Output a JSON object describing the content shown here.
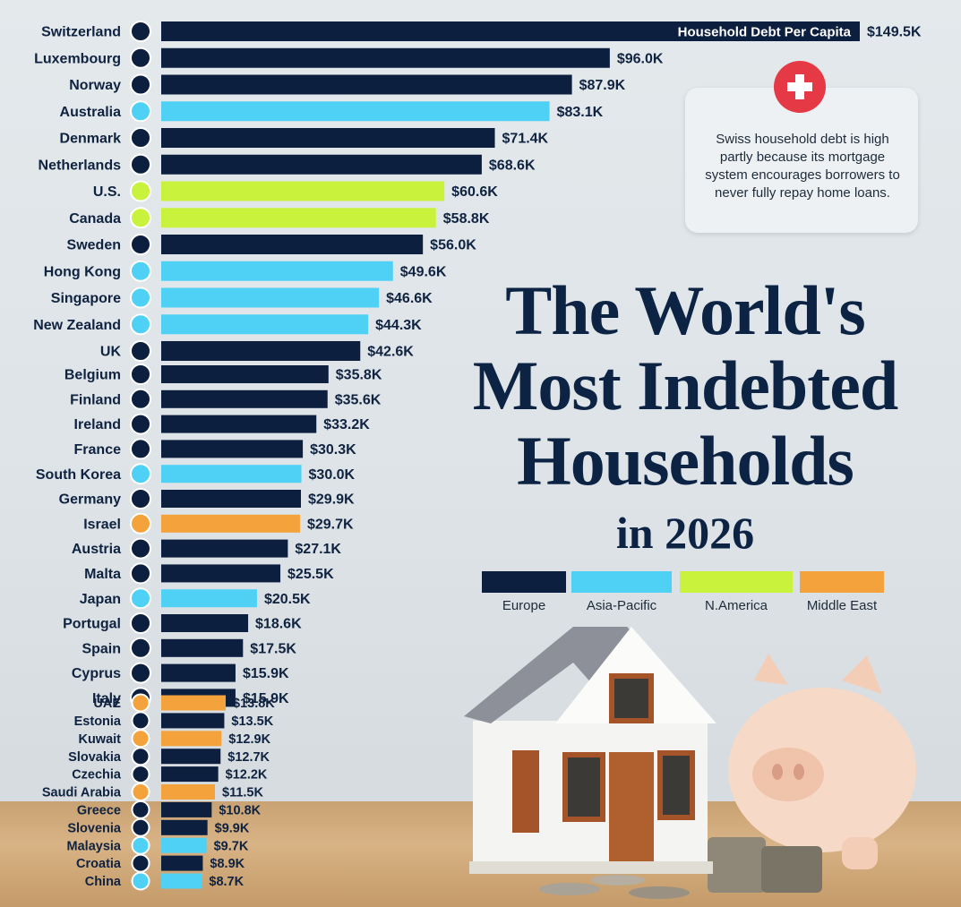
{
  "colors": {
    "Europe": "#0c1f3f",
    "Asia-Pacific": "#4fd1f5",
    "N.America": "#c9f23d",
    "Middle East": "#f4a23c"
  },
  "title": "The World's Most Indebted Households",
  "subtitle": "in 2026",
  "callout": {
    "icon": "swiss-cross-icon",
    "text": "Swiss household debt is high partly because its mortgage system encourages borrowers to never fully repay home loans."
  },
  "legend": [
    "Europe",
    "Asia-Pacific",
    "N.America",
    "Middle East"
  ],
  "chart_data": {
    "type": "bar",
    "orientation": "horizontal",
    "bar_label": "Household Debt Per Capita",
    "unit": "$K",
    "categories": [
      "Switzerland",
      "Luxembourg",
      "Norway",
      "Australia",
      "Denmark",
      "Netherlands",
      "U.S.",
      "Canada",
      "Sweden",
      "Hong Kong",
      "Singapore",
      "New Zealand",
      "UK",
      "Belgium",
      "Finland",
      "Ireland",
      "France",
      "South Korea",
      "Germany",
      "Israel",
      "Austria",
      "Malta",
      "Japan",
      "Portugal",
      "Spain",
      "Cyprus",
      "Italy",
      "UAE",
      "Estonia",
      "Kuwait",
      "Slovakia",
      "Czechia",
      "Saudi Arabia",
      "Greece",
      "Slovenia",
      "Malaysia",
      "Croatia",
      "China"
    ],
    "values": [
      149.5,
      96.0,
      87.9,
      83.1,
      71.4,
      68.6,
      60.6,
      58.8,
      56.0,
      49.6,
      46.6,
      44.3,
      42.6,
      35.8,
      35.6,
      33.2,
      30.3,
      30.0,
      29.9,
      29.7,
      27.1,
      25.5,
      20.5,
      18.6,
      17.5,
      15.9,
      15.9,
      13.8,
      13.5,
      12.9,
      12.7,
      12.2,
      11.5,
      10.8,
      9.9,
      9.7,
      8.9,
      8.7
    ],
    "value_labels": [
      "$149.5K",
      "$96.0K",
      "$87.9K",
      "$83.1K",
      "$71.4K",
      "$68.6K",
      "$60.6K",
      "$58.8K",
      "$56.0K",
      "$49.6K",
      "$46.6K",
      "$44.3K",
      "$42.6K",
      "$35.8K",
      "$35.6K",
      "$33.2K",
      "$30.3K",
      "$30.0K",
      "$29.9K",
      "$29.7K",
      "$27.1K",
      "$25.5K",
      "$20.5K",
      "$18.6K",
      "$17.5K",
      "$15.9K",
      "$15.9K",
      "$13.8K",
      "$13.5K",
      "$12.9K",
      "$12.7K",
      "$12.2K",
      "$11.5K",
      "$10.8K",
      "$9.9K",
      "$9.7K",
      "$8.9K",
      "$8.7K"
    ],
    "regions": [
      "Europe",
      "Europe",
      "Europe",
      "Asia-Pacific",
      "Europe",
      "Europe",
      "N.America",
      "N.America",
      "Europe",
      "Asia-Pacific",
      "Asia-Pacific",
      "Asia-Pacific",
      "Europe",
      "Europe",
      "Europe",
      "Europe",
      "Europe",
      "Asia-Pacific",
      "Europe",
      "Middle East",
      "Europe",
      "Europe",
      "Asia-Pacific",
      "Europe",
      "Europe",
      "Europe",
      "Europe",
      "Middle East",
      "Europe",
      "Middle East",
      "Europe",
      "Europe",
      "Middle East",
      "Europe",
      "Europe",
      "Asia-Pacific",
      "Europe",
      "Asia-Pacific"
    ],
    "flag_icons": [
      "flag-ch-icon",
      "flag-lu-icon",
      "flag-no-icon",
      "flag-au-icon",
      "flag-dk-icon",
      "flag-nl-icon",
      "flag-us-icon",
      "flag-ca-icon",
      "flag-se-icon",
      "flag-hk-icon",
      "flag-sg-icon",
      "flag-nz-icon",
      "flag-uk-icon",
      "flag-be-icon",
      "flag-fi-icon",
      "flag-ie-icon",
      "flag-fr-icon",
      "flag-kr-icon",
      "flag-de-icon",
      "flag-il-icon",
      "flag-at-icon",
      "flag-mt-icon",
      "flag-jp-icon",
      "flag-pt-icon",
      "flag-es-icon",
      "flag-cy-icon",
      "flag-it-icon",
      "flag-ae-icon",
      "flag-ee-icon",
      "flag-kw-icon",
      "flag-sk-icon",
      "flag-cz-icon",
      "flag-sa-icon",
      "flag-gr-icon",
      "flag-si-icon",
      "flag-my-icon",
      "flag-hr-icon",
      "flag-cn-icon"
    ]
  }
}
